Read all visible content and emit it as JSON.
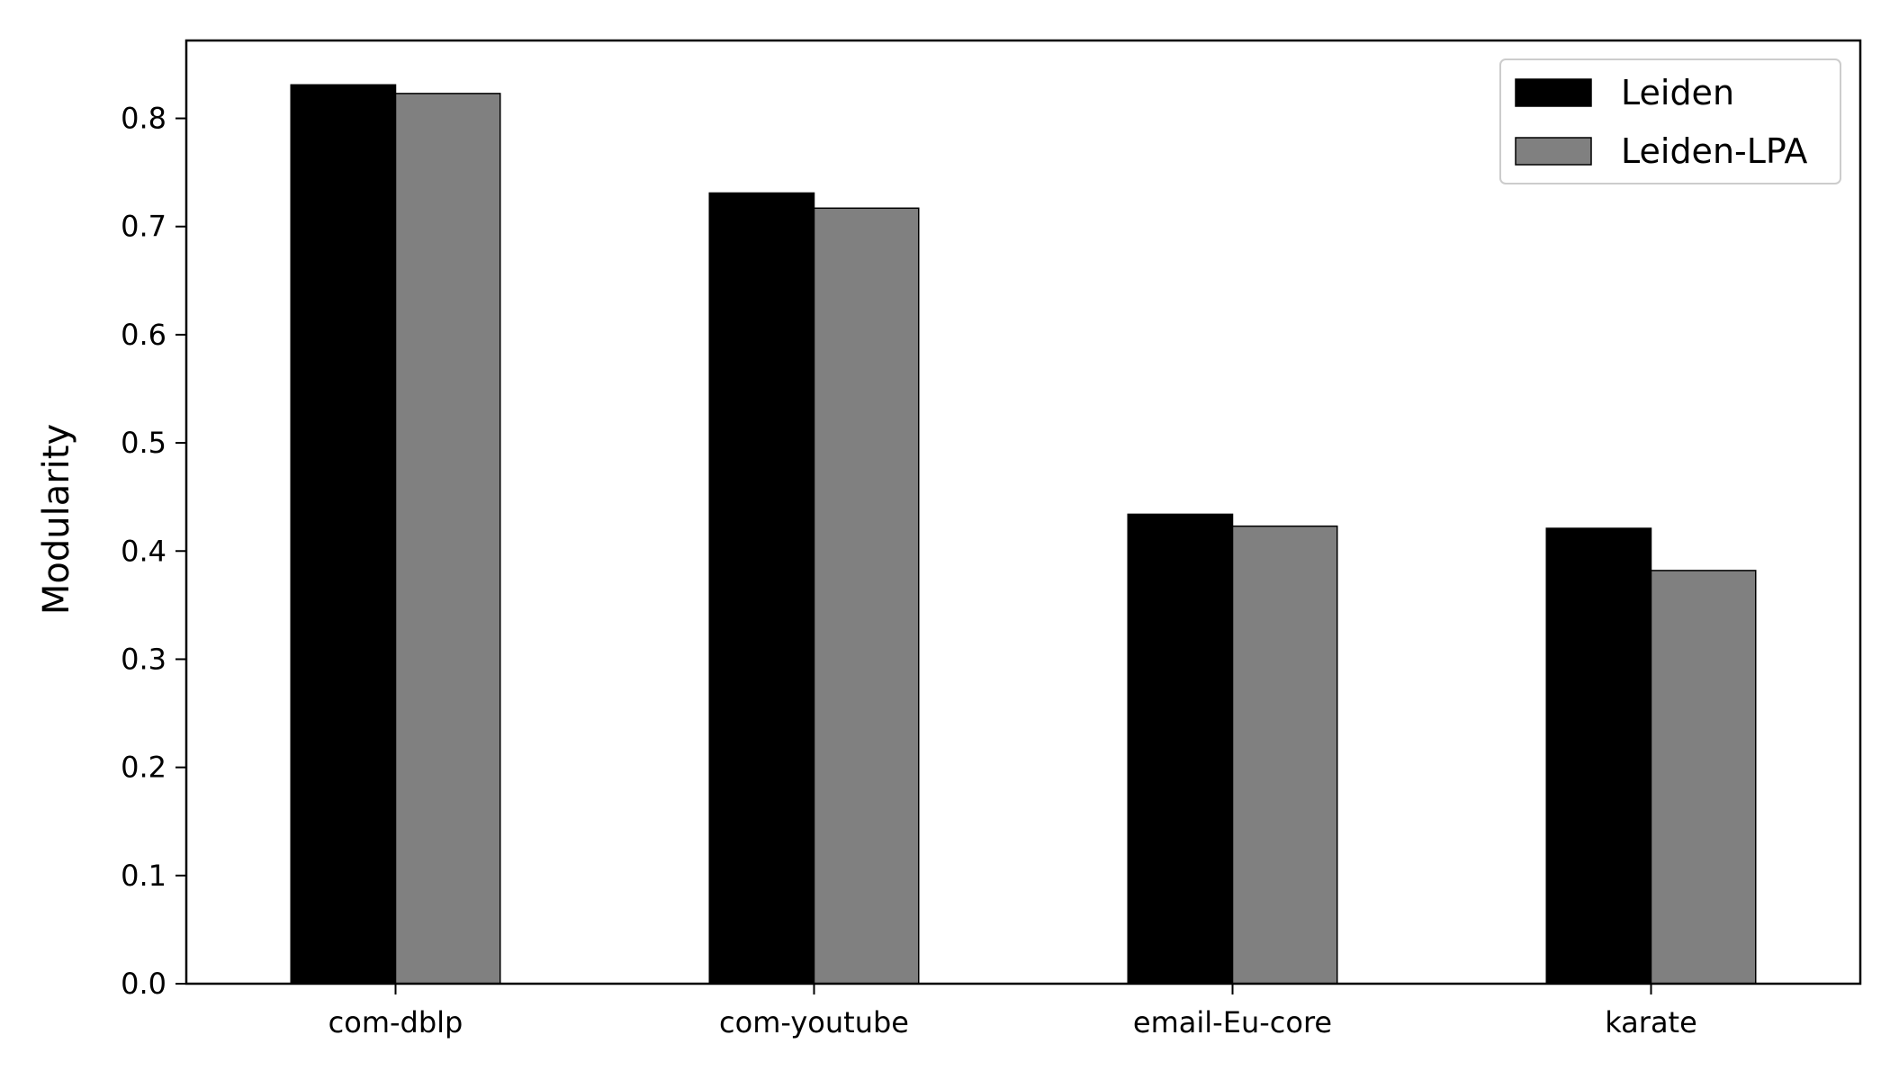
{
  "chart_data": {
    "type": "bar",
    "title": "",
    "xlabel": "",
    "ylabel": "Modularity",
    "categories": [
      "com-dblp",
      "com-youtube",
      "email-Eu-core",
      "karate"
    ],
    "series": [
      {
        "name": "Leiden",
        "color": "#000000",
        "values": [
          0.831,
          0.731,
          0.434,
          0.421
        ]
      },
      {
        "name": "Leiden-LPA",
        "color": "#808080",
        "values": [
          0.823,
          0.717,
          0.423,
          0.382
        ]
      }
    ],
    "ylim": [
      0,
      0.872
    ],
    "yticks": [
      "0.0",
      "0.1",
      "0.2",
      "0.3",
      "0.4",
      "0.5",
      "0.6",
      "0.7",
      "0.8"
    ],
    "grid": false,
    "legend_position": "top-right"
  }
}
